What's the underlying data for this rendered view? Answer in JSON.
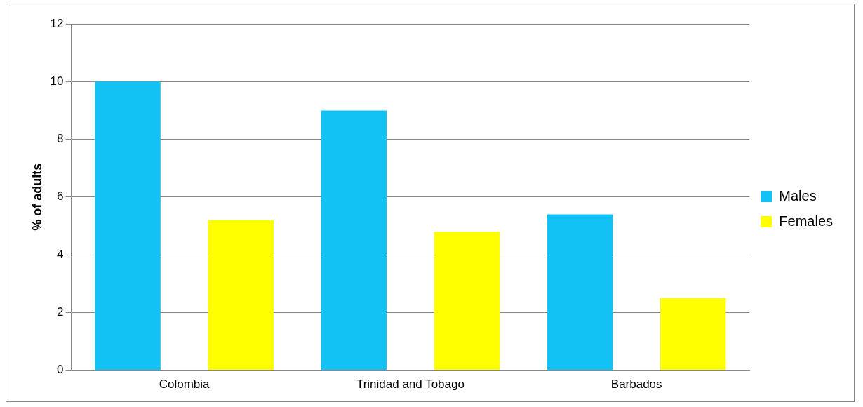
{
  "chart_data": {
    "type": "bar",
    "ylabel": "% of adults",
    "categories": [
      "Colombia",
      "Trinidad and Tobago",
      "Barbados"
    ],
    "series": [
      {
        "name": "Males",
        "color": "#12c2f4",
        "values": [
          10,
          9,
          5.4
        ]
      },
      {
        "name": "Females",
        "color": "#ffff00",
        "values": [
          5.2,
          4.8,
          2.5
        ]
      }
    ],
    "ylim": [
      0,
      12
    ],
    "yticks": [
      0,
      2,
      4,
      6,
      8,
      10,
      12
    ],
    "grid": "y",
    "legend": "right"
  }
}
